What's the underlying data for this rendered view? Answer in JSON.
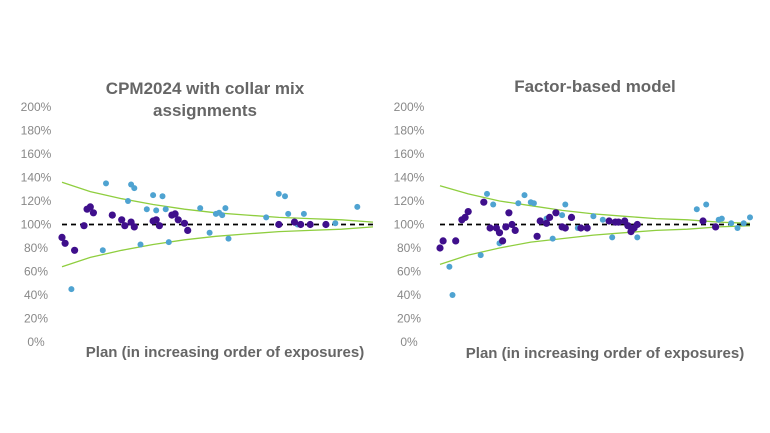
{
  "chart_data": [
    {
      "type": "scatter",
      "title": "CPM2024 with collar mix assignments",
      "xlabel": "Plan (in increasing order of exposures)",
      "ylabel": "",
      "ylim": [
        0,
        200
      ],
      "yticks": [
        "0%",
        "20%",
        "40%",
        "60%",
        "80%",
        "100%",
        "120%",
        "140%",
        "160%",
        "180%",
        "200%"
      ],
      "reference_line": 100,
      "band_upper": [
        [
          1,
          136
        ],
        [
          10,
          128
        ],
        [
          20,
          122
        ],
        [
          30,
          117
        ],
        [
          40,
          113
        ],
        [
          50,
          110
        ],
        [
          60,
          108
        ],
        [
          70,
          106
        ],
        [
          80,
          105
        ],
        [
          90,
          104
        ],
        [
          100,
          102
        ]
      ],
      "band_lower": [
        [
          1,
          64
        ],
        [
          10,
          72
        ],
        [
          20,
          78
        ],
        [
          30,
          83
        ],
        [
          40,
          87
        ],
        [
          50,
          90
        ],
        [
          60,
          92
        ],
        [
          70,
          94
        ],
        [
          80,
          95
        ],
        [
          90,
          96
        ],
        [
          100,
          98
        ]
      ],
      "series": [
        {
          "color": "#3f0f8c",
          "points": [
            [
              1,
              89
            ],
            [
              2,
              84
            ],
            [
              5,
              78
            ],
            [
              8,
              99
            ],
            [
              9,
              113
            ],
            [
              10,
              115
            ],
            [
              11,
              110
            ],
            [
              17,
              108
            ],
            [
              20,
              104
            ],
            [
              21,
              99
            ],
            [
              23,
              102
            ],
            [
              24,
              98
            ],
            [
              30,
              103
            ],
            [
              31,
              104
            ],
            [
              32,
              99
            ],
            [
              36,
              108
            ],
            [
              37,
              109
            ],
            [
              38,
              104
            ],
            [
              40,
              101
            ],
            [
              41,
              95
            ],
            [
              70,
              100
            ],
            [
              75,
              102
            ],
            [
              77,
              100
            ],
            [
              80,
              100
            ],
            [
              85,
              100
            ]
          ]
        },
        {
          "color": "#4fa3d1",
          "points": [
            [
              4,
              45
            ],
            [
              14,
              78
            ],
            [
              15,
              135
            ],
            [
              22,
              120
            ],
            [
              23,
              134
            ],
            [
              24,
              131
            ],
            [
              26,
              83
            ],
            [
              28,
              113
            ],
            [
              30,
              125
            ],
            [
              31,
              112
            ],
            [
              33,
              124
            ],
            [
              34,
              113
            ],
            [
              35,
              85
            ],
            [
              45,
              114
            ],
            [
              48,
              93
            ],
            [
              50,
              109
            ],
            [
              51,
              110
            ],
            [
              52,
              108
            ],
            [
              53,
              114
            ],
            [
              54,
              88
            ],
            [
              66,
              106
            ],
            [
              70,
              126
            ],
            [
              72,
              124
            ],
            [
              73,
              109
            ],
            [
              76,
              100
            ],
            [
              78,
              109
            ],
            [
              88,
              101
            ],
            [
              95,
              115
            ]
          ]
        }
      ]
    },
    {
      "type": "scatter",
      "title": "Factor-based model",
      "xlabel": "Plan (in increasing order of exposures)",
      "ylabel": "",
      "ylim": [
        0,
        200
      ],
      "yticks": [
        "0%",
        "20%",
        "40%",
        "60%",
        "80%",
        "100%",
        "120%",
        "140%",
        "160%",
        "180%",
        "200%"
      ],
      "reference_line": 100,
      "band_upper": [
        [
          1,
          133
        ],
        [
          10,
          126
        ],
        [
          20,
          120
        ],
        [
          30,
          116
        ],
        [
          40,
          112
        ],
        [
          50,
          109
        ],
        [
          60,
          107
        ],
        [
          70,
          105
        ],
        [
          80,
          104
        ],
        [
          90,
          102
        ],
        [
          100,
          101
        ]
      ],
      "band_lower": [
        [
          1,
          66
        ],
        [
          10,
          74
        ],
        [
          20,
          80
        ],
        [
          30,
          85
        ],
        [
          40,
          88
        ],
        [
          50,
          91
        ],
        [
          60,
          93
        ],
        [
          70,
          95
        ],
        [
          80,
          96
        ],
        [
          90,
          98
        ],
        [
          100,
          99
        ]
      ],
      "series": [
        {
          "color": "#3f0f8c",
          "points": [
            [
              1,
              80
            ],
            [
              2,
              86
            ],
            [
              6,
              86
            ],
            [
              8,
              104
            ],
            [
              9,
              106
            ],
            [
              10,
              111
            ],
            [
              15,
              119
            ],
            [
              17,
              97
            ],
            [
              19,
              97
            ],
            [
              20,
              93
            ],
            [
              21,
              86
            ],
            [
              22,
              98
            ],
            [
              23,
              110
            ],
            [
              24,
              100
            ],
            [
              25,
              95
            ],
            [
              32,
              90
            ],
            [
              33,
              103
            ],
            [
              35,
              101
            ],
            [
              36,
              106
            ],
            [
              38,
              110
            ],
            [
              40,
              98
            ],
            [
              41,
              97
            ],
            [
              43,
              106
            ],
            [
              46,
              97
            ],
            [
              48,
              97
            ],
            [
              55,
              103
            ],
            [
              57,
              102
            ],
            [
              58,
              102
            ],
            [
              60,
              103
            ],
            [
              61,
              99
            ],
            [
              62,
              94
            ],
            [
              63,
              97
            ],
            [
              64,
              100
            ],
            [
              85,
              103
            ],
            [
              89,
              98
            ]
          ]
        },
        {
          "color": "#4fa3d1",
          "points": [
            [
              4,
              64
            ],
            [
              5,
              40
            ],
            [
              14,
              74
            ],
            [
              16,
              126
            ],
            [
              18,
              117
            ],
            [
              20,
              84
            ],
            [
              26,
              118
            ],
            [
              28,
              125
            ],
            [
              30,
              119
            ],
            [
              31,
              118
            ],
            [
              35,
              105
            ],
            [
              37,
              88
            ],
            [
              40,
              108
            ],
            [
              41,
              117
            ],
            [
              45,
              97
            ],
            [
              50,
              107
            ],
            [
              53,
              104
            ],
            [
              56,
              89
            ],
            [
              62,
              95
            ],
            [
              64,
              89
            ],
            [
              83,
              113
            ],
            [
              86,
              117
            ],
            [
              90,
              104
            ],
            [
              91,
              105
            ],
            [
              94,
              101
            ],
            [
              96,
              97
            ],
            [
              98,
              101
            ],
            [
              100,
              106
            ]
          ]
        }
      ]
    }
  ]
}
